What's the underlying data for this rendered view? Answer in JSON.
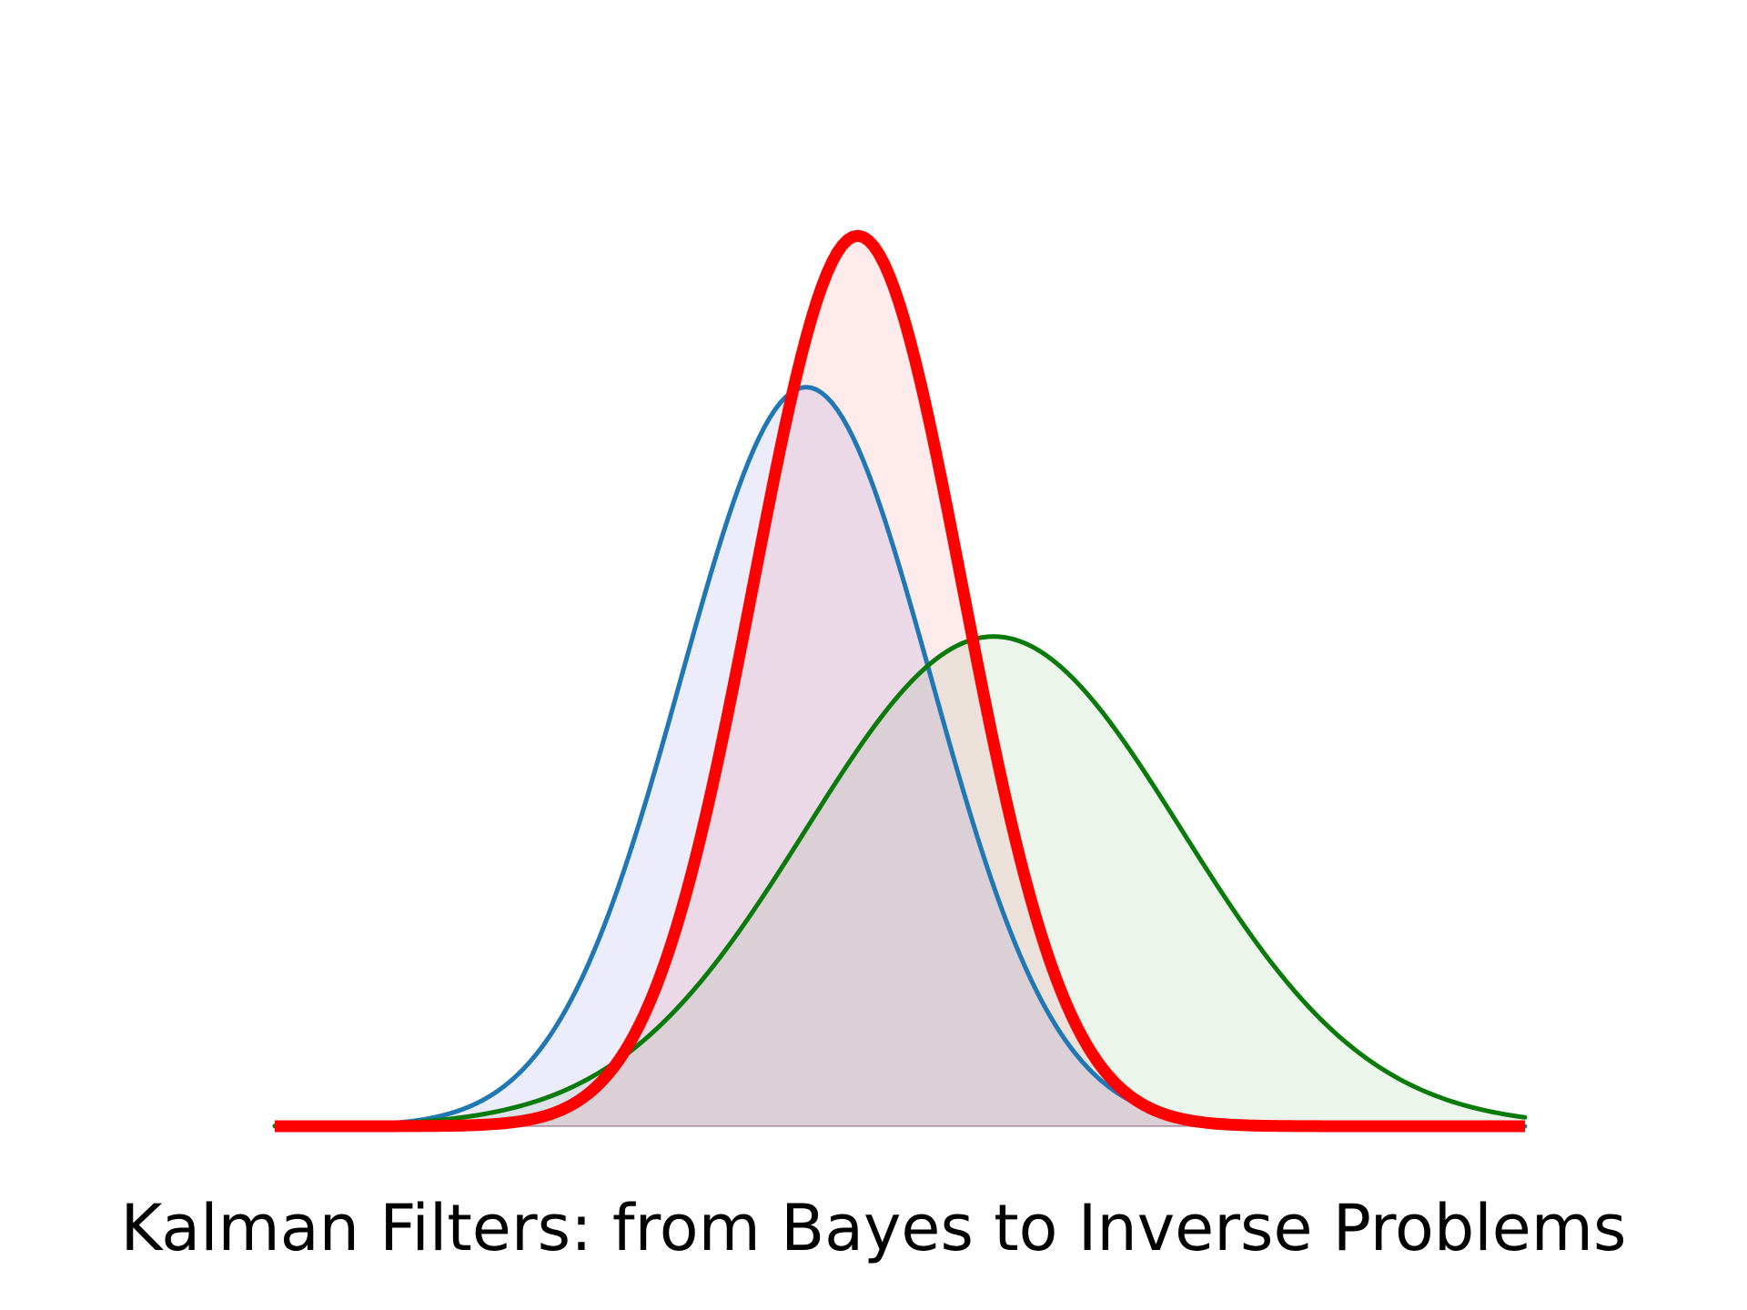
{
  "caption": "Kalman Filters: from Bayes to Inverse Problems",
  "chart_data": {
    "type": "area",
    "title": "",
    "xlabel": "",
    "ylabel": "",
    "xlim": [
      -4,
      4
    ],
    "ylim": [
      0,
      1.04
    ],
    "grid": false,
    "axes_visible": false,
    "legend": "none",
    "series": [
      {
        "mean": -0.6,
        "sd": 0.8,
        "peak": 0.83,
        "line_color": "#1f77b4",
        "fill_color": "#e6e6fa"
      },
      {
        "mean": 0.6,
        "sd": 1.2,
        "peak": 0.55,
        "line_color": "#0a7a0a",
        "fill_color": "#e5f1e5"
      },
      {
        "mean": -0.27,
        "sd": 0.67,
        "peak": 1.0,
        "line_color": "#ff0000",
        "fill_color": "#ffe4e6",
        "emphasis": true
      }
    ]
  }
}
